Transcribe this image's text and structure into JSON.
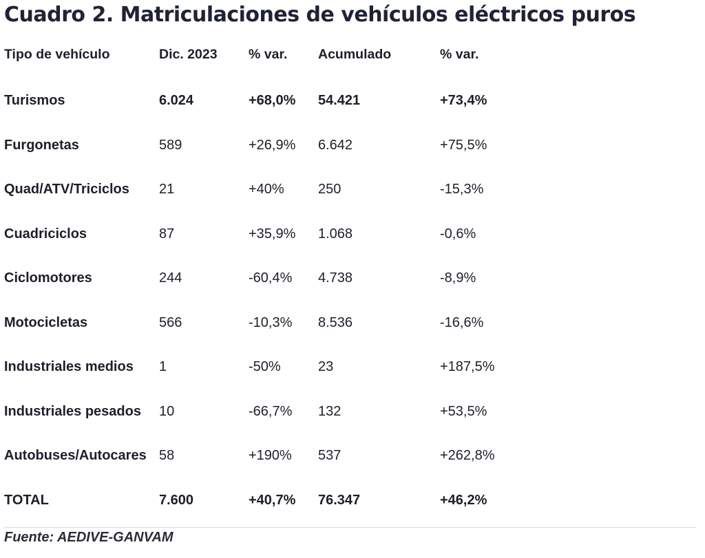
{
  "title": "Cuadro 2. Matriculaciones de vehículos eléctricos puros",
  "table": {
    "headers": [
      "Tipo de vehículo",
      "Dic. 2023",
      "% var.",
      "Acumulado",
      "% var."
    ],
    "rows": [
      {
        "cells": [
          "Turismos",
          "6.024",
          "+68,0%",
          "54.421",
          "+73,4%"
        ],
        "bold": true
      },
      {
        "cells": [
          "Furgonetas",
          "589",
          "+26,9%",
          "6.642",
          "+75,5%"
        ],
        "bold": false
      },
      {
        "cells": [
          "Quad/ATV/Triciclos",
          "21",
          "+40%",
          "250",
          "-15,3%"
        ],
        "bold": false
      },
      {
        "cells": [
          "Cuadriciclos",
          "87",
          "+35,9%",
          "1.068",
          "-0,6%"
        ],
        "bold": false
      },
      {
        "cells": [
          "Ciclomotores",
          "244",
          "-60,4%",
          "4.738",
          "-8,9%"
        ],
        "bold": false
      },
      {
        "cells": [
          "Motocicletas",
          "566",
          "-10,3%",
          "8.536",
          "-16,6%"
        ],
        "bold": false
      },
      {
        "cells": [
          "Industriales medios",
          "1",
          "-50%",
          "23",
          "+187,5%"
        ],
        "bold": false
      },
      {
        "cells": [
          "Industriales pesados",
          "10",
          "-66,7%",
          "132",
          "+53,5%"
        ],
        "bold": false
      },
      {
        "cells": [
          "Autobuses/Autocares",
          "58",
          "+190%",
          "537",
          "+262,8%"
        ],
        "bold": false
      },
      {
        "cells": [
          "TOTAL",
          "7.600",
          "+40,7%",
          "76.347",
          "+46,2%"
        ],
        "bold": true
      }
    ]
  },
  "source": "Fuente: AEDIVE-GANVAM"
}
